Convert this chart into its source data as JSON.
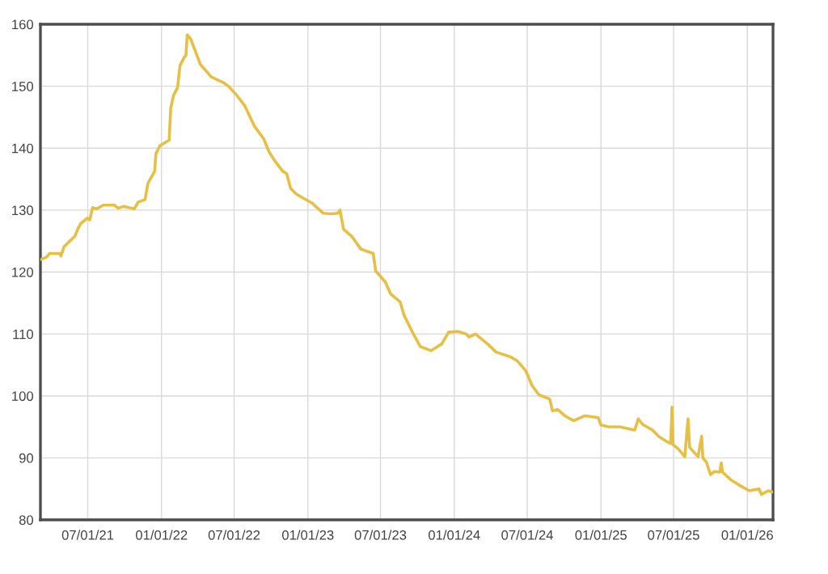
{
  "chart_data": {
    "type": "line",
    "x": [
      "2021-03-05",
      "2021-03-20",
      "2021-03-28",
      "2021-04-23",
      "2021-04-25",
      "2021-05-03",
      "2021-05-30",
      "2021-06-06",
      "2021-06-13",
      "2021-06-30",
      "2021-07-06",
      "2021-07-13",
      "2021-07-23",
      "2021-08-09",
      "2021-09-05",
      "2021-09-15",
      "2021-09-28",
      "2021-10-25",
      "2021-11-04",
      "2021-11-21",
      "2021-11-28",
      "2021-12-15",
      "2021-12-18",
      "2021-12-28",
      "2022-01-20",
      "2022-01-24",
      "2022-01-31",
      "2022-02-10",
      "2022-02-16",
      "2022-02-26",
      "2022-03-03",
      "2022-03-06",
      "2022-03-15",
      "2022-04-08",
      "2022-05-05",
      "2022-06-04",
      "2022-06-17",
      "2022-07-08",
      "2022-07-28",
      "2022-08-21",
      "2022-09-13",
      "2022-09-26",
      "2022-10-10",
      "2022-10-30",
      "2022-11-09",
      "2022-11-19",
      "2022-12-03",
      "2023-01-12",
      "2023-02-08",
      "2023-02-28",
      "2023-03-17",
      "2023-03-22",
      "2023-03-31",
      "2023-04-20",
      "2023-05-13",
      "2023-06-13",
      "2023-06-19",
      "2023-07-13",
      "2023-07-26",
      "2023-08-19",
      "2023-08-29",
      "2023-09-18",
      "2023-10-08",
      "2023-11-04",
      "2023-12-01",
      "2023-12-18",
      "2024-01-10",
      "2024-01-31",
      "2024-02-07",
      "2024-02-23",
      "2024-03-24",
      "2024-04-14",
      "2024-05-21",
      "2024-06-07",
      "2024-06-27",
      "2024-07-13",
      "2024-07-30",
      "2024-08-26",
      "2024-09-02",
      "2024-09-15",
      "2024-10-05",
      "2024-10-25",
      "2024-11-21",
      "2024-12-25",
      "2025-01-01",
      "2025-01-21",
      "2025-02-17",
      "2025-03-26",
      "2025-04-04",
      "2025-04-15",
      "2025-05-09",
      "2025-05-26",
      "2025-06-15",
      "2025-06-24",
      "2025-06-27",
      "2025-06-30",
      "2025-07-12",
      "2025-07-29",
      "2025-08-06",
      "2025-08-10",
      "2025-08-31",
      "2025-09-09",
      "2025-09-12",
      "2025-09-21",
      "2025-10-01",
      "2025-10-11",
      "2025-10-24",
      "2025-10-28",
      "2025-10-31",
      "2025-11-20",
      "2025-12-17",
      "2026-01-06",
      "2026-01-30",
      "2026-02-05",
      "2026-02-22",
      "2026-03-04"
    ],
    "series": [
      {
        "color": "#e6bf45",
        "values": [
          122.0,
          122.4,
          123.0,
          123.0,
          122.6,
          124.1,
          125.8,
          126.9,
          127.8,
          128.7,
          128.4,
          130.4,
          130.2,
          130.8,
          130.8,
          130.3,
          130.6,
          130.2,
          131.3,
          131.7,
          134.3,
          136.3,
          139.1,
          140.4,
          141.3,
          146.5,
          148.5,
          149.8,
          153.3,
          154.6,
          155.0,
          158.3,
          157.6,
          153.5,
          151.5,
          150.6,
          150.0,
          148.5,
          146.8,
          143.5,
          141.5,
          139.4,
          138.0,
          136.3,
          135.9,
          133.5,
          132.6,
          131.1,
          129.5,
          129.4,
          129.5,
          130.0,
          126.9,
          125.8,
          123.7,
          123.0,
          120.2,
          118.4,
          116.5,
          115.2,
          113.0,
          110.4,
          108.0,
          107.3,
          108.4,
          110.3,
          110.4,
          110.0,
          109.5,
          110.0,
          108.4,
          107.1,
          106.3,
          105.6,
          104.1,
          101.7,
          100.2,
          99.5,
          97.6,
          97.8,
          96.7,
          96.0,
          96.8,
          96.5,
          95.3,
          95.0,
          95.0,
          94.5,
          96.3,
          95.4,
          94.5,
          93.4,
          92.6,
          92.3,
          98.2,
          92.1,
          91.5,
          90.2,
          96.3,
          91.7,
          90.2,
          93.5,
          90.0,
          89.3,
          87.3,
          87.8,
          87.7,
          89.2,
          87.7,
          86.5,
          85.4,
          84.7,
          85.0,
          84.1,
          84.7,
          84.5
        ]
      }
    ],
    "xlim": [
      "2021-03-05",
      "2026-03-06"
    ],
    "xticks": [
      {
        "value": "2021-07-01",
        "label": "07/01/21"
      },
      {
        "value": "2022-01-01",
        "label": "01/01/22"
      },
      {
        "value": "2022-07-01",
        "label": "07/01/22"
      },
      {
        "value": "2023-01-01",
        "label": "01/01/23"
      },
      {
        "value": "2023-07-01",
        "label": "07/01/23"
      },
      {
        "value": "2024-01-01",
        "label": "01/01/24"
      },
      {
        "value": "2024-07-01",
        "label": "07/01/24"
      },
      {
        "value": "2025-01-01",
        "label": "01/01/25"
      },
      {
        "value": "2025-07-01",
        "label": "07/01/25"
      },
      {
        "value": "2026-01-01",
        "label": "01/01/26"
      }
    ],
    "ylim": [
      80,
      160
    ],
    "yticks": [
      80,
      90,
      100,
      110,
      120,
      130,
      140,
      150,
      160
    ],
    "grid": true,
    "line_style": "solid"
  }
}
